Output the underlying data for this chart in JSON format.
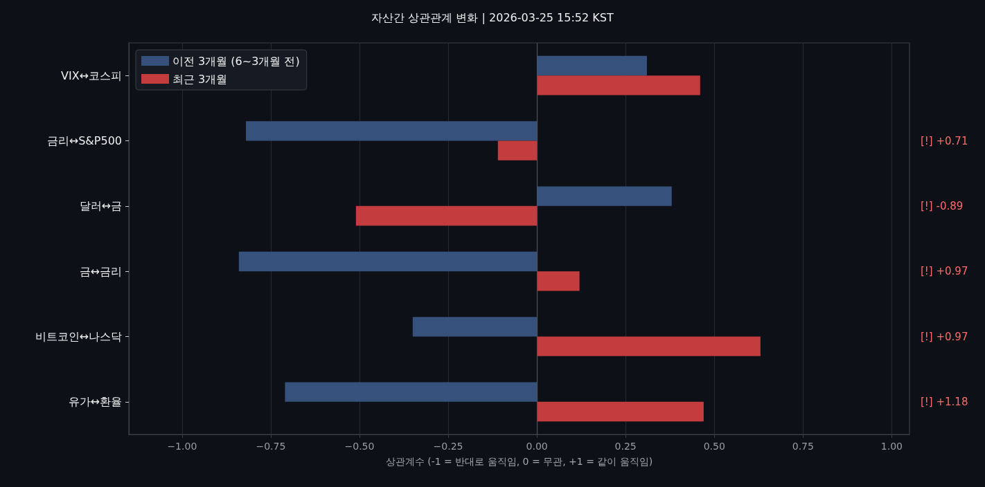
{
  "chart_data": {
    "type": "bar",
    "orientation": "horizontal",
    "title": "자산간 상관관계 변화 | 2026-03-25 15:52 KST",
    "xlabel": "상관계수 (-1 = 반대로 움직임, 0 = 무관, +1 = 같이 움직임)",
    "categories": [
      "VIX↔코스피",
      "금리↔S&P500",
      "달러↔금",
      "금↔금리",
      "비트코인↔나스닥",
      "유가↔환율"
    ],
    "series": [
      {
        "name": "이전 3개월 (6~3개월 전)",
        "color": "#36527c",
        "values": [
          0.31,
          -0.82,
          0.38,
          -0.84,
          -0.35,
          -0.71
        ]
      },
      {
        "name": "최근 3개월",
        "color": "#c43c3e",
        "values": [
          0.46,
          -0.11,
          -0.51,
          0.12,
          0.63,
          0.47
        ]
      }
    ],
    "xlim": [
      -1.15,
      1.05
    ],
    "xticks": [
      {
        "value": -1,
        "label": "−1.00"
      },
      {
        "value": -0.75,
        "label": "−0.75"
      },
      {
        "value": -0.5,
        "label": "−0.50"
      },
      {
        "value": -0.25,
        "label": "−0.25"
      },
      {
        "value": 0,
        "label": "0.00"
      },
      {
        "value": 0.25,
        "label": "0.25"
      },
      {
        "value": 0.5,
        "label": "0.50"
      },
      {
        "value": 0.75,
        "label": "0.75"
      },
      {
        "value": 1,
        "label": "1.00"
      }
    ],
    "grid": "x",
    "legend": "top left",
    "ref_lines": [
      {
        "axis": "x",
        "value": 0,
        "color": "#4e525a"
      }
    ],
    "annotations": [
      "[!] +0.71",
      "[!] -0.89",
      "[!] +0.97",
      "[!] +0.97",
      "[!] +1.18"
    ]
  }
}
